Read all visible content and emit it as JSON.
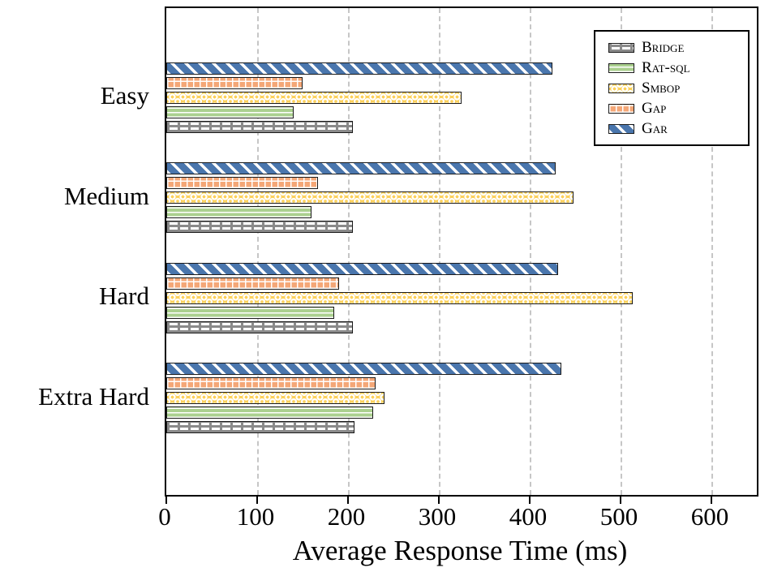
{
  "chart_data": {
    "type": "bar",
    "orientation": "horizontal",
    "title": "",
    "xlabel": "Average Response Time (ms)",
    "ylabel": "",
    "xlim": [
      0,
      650
    ],
    "xticks": [
      0,
      100,
      200,
      300,
      400,
      500,
      600
    ],
    "grid": "vertical-dashed",
    "categories": [
      "Easy",
      "Medium",
      "Hard",
      "Extra Hard"
    ],
    "series": [
      {
        "name": "Bridge",
        "pattern": "horizontal-dashes",
        "color": "#8a8a8a",
        "values": [
          205,
          205,
          205,
          207
        ]
      },
      {
        "name": "Rat-sql",
        "pattern": "horizontal-lines",
        "color": "#abd08f",
        "values": [
          140,
          160,
          185,
          228
        ]
      },
      {
        "name": "Smbop",
        "pattern": "white-dots",
        "color": "#fcd15c",
        "values": [
          325,
          448,
          513,
          240
        ]
      },
      {
        "name": "Gap",
        "pattern": "grid",
        "color": "#f4a777",
        "values": [
          150,
          167,
          190,
          230
        ]
      },
      {
        "name": "Gar",
        "pattern": "diagonal-stripes",
        "color": "#4a76ad",
        "values": [
          425,
          429,
          431,
          435
        ]
      }
    ],
    "bar_order_top_to_bottom": [
      "Gar",
      "Gap",
      "Smbop",
      "Rat-sql",
      "Bridge"
    ],
    "legend": {
      "position": "top-right",
      "labels": [
        "Bridge",
        "Rat-sql",
        "Smbop",
        "Gap",
        "Gar"
      ]
    }
  }
}
